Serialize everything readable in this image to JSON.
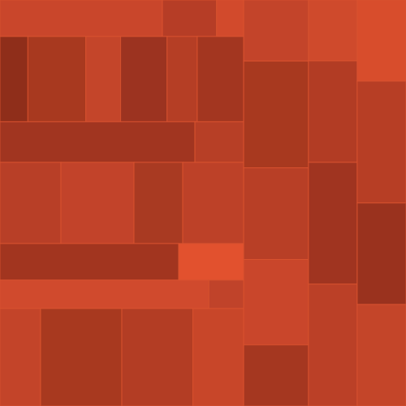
{
  "chart_data": {
    "type": "treemap",
    "tick_labels": false,
    "children": [
      {
        "children": [
          {
            "children": [
              {
                "value": 30,
                "color": "#c9462b"
              },
              {
                "value": 10,
                "color": "#b63d26"
              },
              {
                "value": 5,
                "color": "#d24a2c"
              }
            ]
          },
          {
            "children": [
              {
                "value": 12,
                "color": "#8f2e1a"
              },
              {
                "value": 25,
                "color": "#a8391f"
              },
              {
                "value": 15,
                "color": "#c4452a"
              },
              {
                "value": 20,
                "color": "#9c3320"
              },
              {
                "value": 13,
                "color": "#b53e25"
              },
              {
                "value": 20,
                "color": "#a33620"
              }
            ]
          },
          {
            "children": [
              {
                "value": 40,
                "color": "#a13520"
              },
              {
                "value": 10,
                "color": "#b73f26"
              }
            ]
          },
          {
            "children": [
              {
                "value": 25,
                "color": "#b83f27"
              },
              {
                "value": 30,
                "color": "#c2432a"
              },
              {
                "value": 20,
                "color": "#a93a22"
              },
              {
                "value": 25,
                "color": "#bd4128"
              }
            ]
          },
          {
            "children": [
              {
                "value": 33,
                "color": "#a2351f"
              },
              {
                "value": 12,
                "color": "#e2512e"
              }
            ]
          },
          {
            "children": [
              {
                "value": 30,
                "color": "#d04a2d"
              },
              {
                "value": 5,
                "color": "#c0432a"
              }
            ]
          },
          {
            "children": [
              {
                "value": 20,
                "color": "#c34429"
              },
              {
                "value": 40,
                "color": "#a8391f"
              },
              {
                "value": 35,
                "color": "#b33d24"
              },
              {
                "value": 25,
                "color": "#c84629"
              }
            ]
          }
        ]
      },
      {
        "children": [
          {
            "children": [
              {
                "children": [
                  {
                    "value": 20,
                    "color": "#c3442a"
                  },
                  {
                    "value": 35,
                    "color": "#a8391f"
                  },
                  {
                    "value": 30,
                    "color": "#b83f26"
                  },
                  {
                    "value": 28,
                    "color": "#c9462b"
                  },
                  {
                    "value": 20,
                    "color": "#a53720"
                  }
                ]
              },
              {
                "children": [
                  {
                    "value": 15,
                    "color": "#cf4a2c"
                  },
                  {
                    "value": 25,
                    "color": "#b23c24"
                  },
                  {
                    "value": 30,
                    "color": "#a03420"
                  },
                  {
                    "value": 30,
                    "color": "#bb4027"
                  }
                ]
              },
              {
                "children": [
                  {
                    "value": 20,
                    "color": "#d84d2c"
                  },
                  {
                    "value": 30,
                    "color": "#b73e25"
                  },
                  {
                    "value": 25,
                    "color": "#9a321e"
                  },
                  {
                    "value": 25,
                    "color": "#c44529"
                  }
                ]
              }
            ]
          }
        ]
      }
    ]
  }
}
